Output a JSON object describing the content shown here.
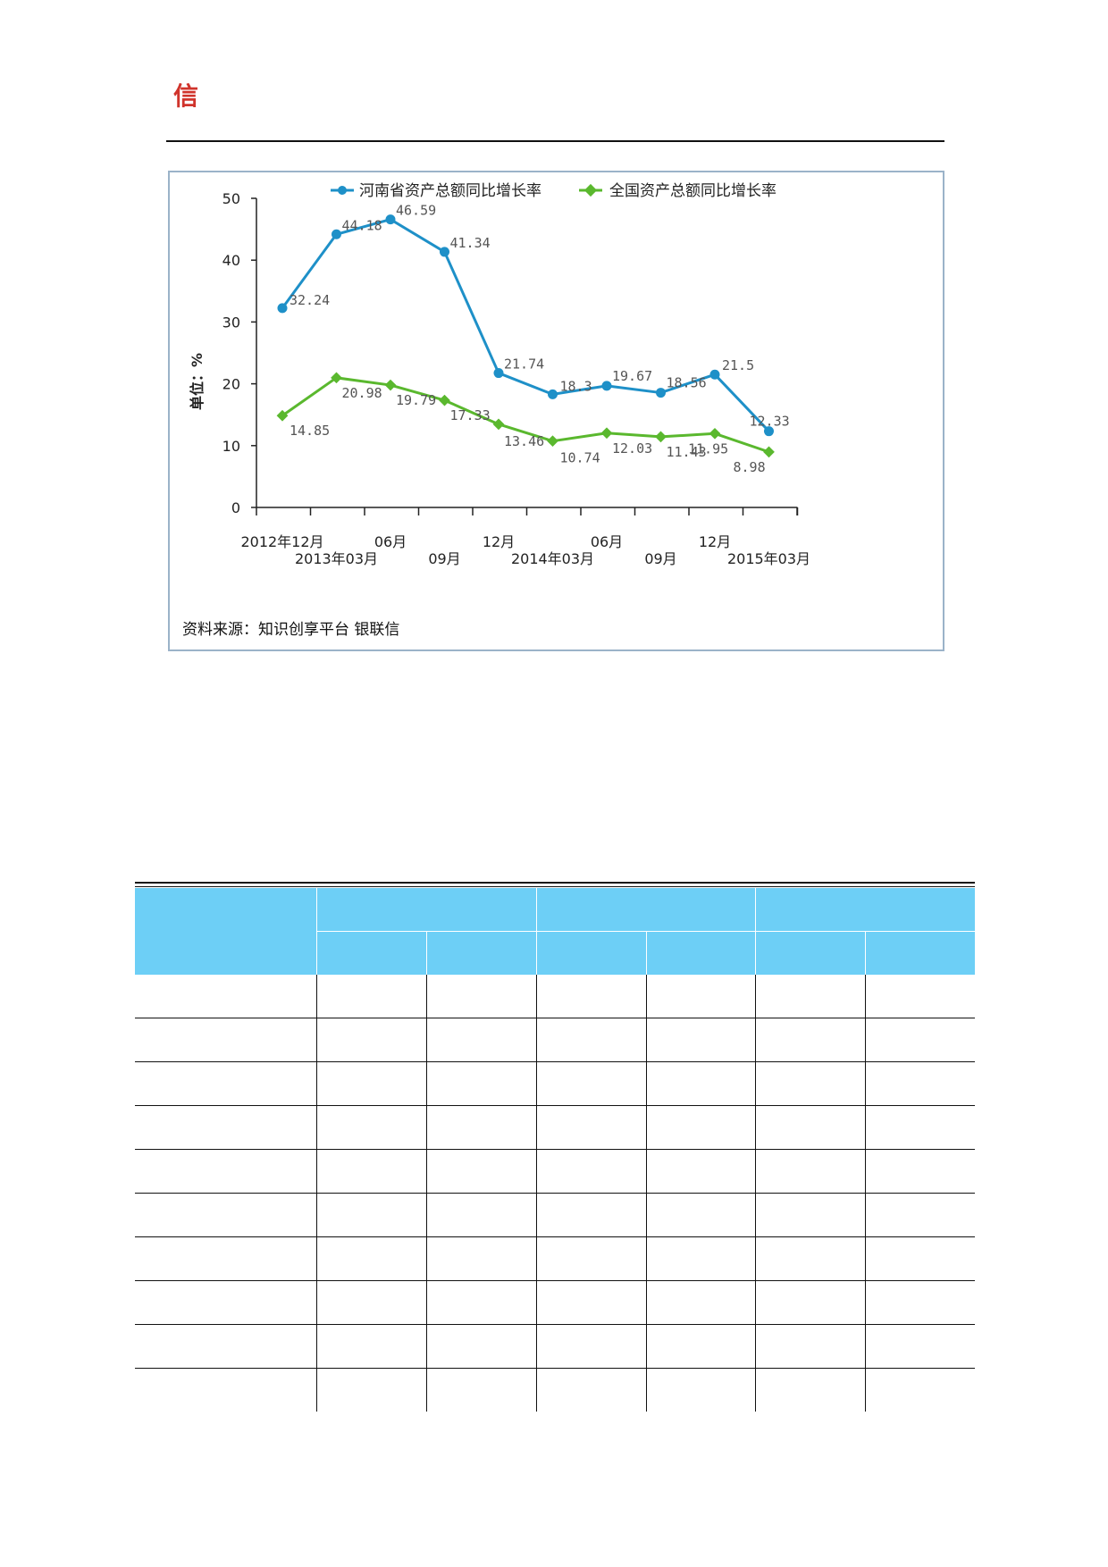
{
  "colors": {
    "henan": "#1e90c8",
    "national": "#5ab82e",
    "header_fill": "#6dcff6",
    "logo": "#d0342c"
  },
  "logo": {
    "glyph": "信"
  },
  "chart_data": {
    "type": "line",
    "ylabel": "单位：%",
    "ylim": [
      0,
      50
    ],
    "yticks": [
      0,
      10,
      20,
      30,
      40,
      50
    ],
    "x_labels": [
      "2012年12月",
      "2013年03月",
      "06月",
      "09月",
      "12月",
      "2014年03月",
      "06月",
      "09月",
      "12月",
      "2015年03月"
    ],
    "series": [
      {
        "name": "河南省资产总额同比增长率",
        "values": [
          32.24,
          44.18,
          46.59,
          41.34,
          21.74,
          18.3,
          19.67,
          18.56,
          21.5,
          12.33
        ]
      },
      {
        "name": "全国资产总额同比增长率",
        "values": [
          14.85,
          20.98,
          19.79,
          17.33,
          13.46,
          10.74,
          12.03,
          11.43,
          11.95,
          8.98
        ]
      }
    ],
    "legend_position": "top",
    "source": "资料来源：知识创享平台 银联信"
  },
  "table": {
    "header_groups": 3,
    "sub_columns": 6,
    "rows": 10
  }
}
